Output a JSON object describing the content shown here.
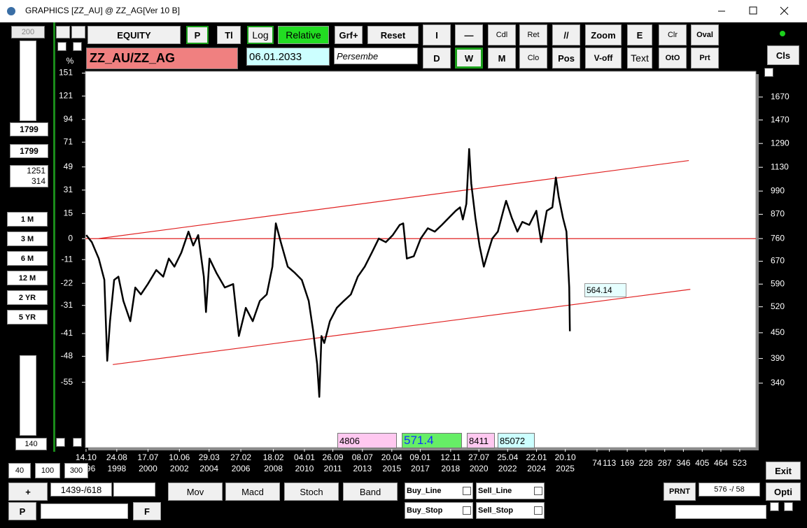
{
  "window": {
    "title": "GRAPHICS  [ZZ_AU] @ ZZ_AG[Ver 10 B]"
  },
  "toolbar": {
    "buttons": [
      "EQUITY",
      "P",
      "Tl",
      "Log",
      "Relative",
      "Grf+",
      "Reset",
      "I",
      "—",
      "Cdl",
      "Ret",
      "//",
      "Zoom",
      "E",
      "Clr",
      "Oval",
      "D",
      "W",
      "M",
      "Clo",
      "Pos",
      "V-off",
      "Text",
      "OtO",
      "Prt",
      "Cls"
    ],
    "symbol": "ZZ_AU/ZZ_AG",
    "date": "06.01.2033",
    "day": "Persembe"
  },
  "left_panel": {
    "fields": [
      "200",
      "1799",
      "1799",
      "1251\n314"
    ],
    "periods": [
      "1 M",
      "3 M",
      "6 M",
      "12 M",
      "2 YR",
      "5 YR"
    ],
    "count": "140"
  },
  "bottom_panel": {
    "zoom_buttons": [
      "40",
      "100",
      "300"
    ],
    "plus": "+",
    "position": "1439-/618",
    "p": "P",
    "f": "F",
    "indicators": [
      "Mov",
      "Macd",
      "Stoch",
      "Band"
    ],
    "signals": [
      "Buy_Line",
      "Sell_Line",
      "Buy_Stop",
      "Sell_Stop"
    ],
    "print": "PRNT",
    "cursor": "576 -/ 58",
    "exit": "Exit",
    "options": "Opti"
  },
  "info_boxes": [
    "4806",
    "571.4",
    "8411",
    "85072"
  ],
  "chart_data": {
    "type": "line",
    "y_label": "%",
    "log_scale": true,
    "annotation": "564.14",
    "xlim": [
      1996.75,
      2037.34
    ],
    "xticks": [
      {
        "value": 1996.79,
        "label": "14.10\n1996"
      },
      {
        "value": 1998.65,
        "label": "24.08\n1998"
      },
      {
        "value": 2000.54,
        "label": "17.07\n2000"
      },
      {
        "value": 2002.44,
        "label": "10.06\n2002"
      },
      {
        "value": 2004.24,
        "label": "29.03\n2004"
      },
      {
        "value": 2006.16,
        "label": "27.02\n2006"
      },
      {
        "value": 2008.13,
        "label": "18.02\n2008"
      },
      {
        "value": 2010.01,
        "label": "04.01\n2010"
      },
      {
        "value": 2011.73,
        "label": "26.09\n2011"
      },
      {
        "value": 2013.52,
        "label": "08.07\n2013"
      },
      {
        "value": 2015.3,
        "label": "20.04\n2015"
      },
      {
        "value": 2017.02,
        "label": "09.01\n2017"
      },
      {
        "value": 2018.86,
        "label": "12.11\n2018"
      },
      {
        "value": 2020.57,
        "label": "27.07\n2020"
      },
      {
        "value": 2022.31,
        "label": "25.04\n2022"
      },
      {
        "value": 2024.06,
        "label": "22.01\n2024"
      },
      {
        "value": 2025.8,
        "label": "20.10\n2025"
      },
      {
        "value": 2027.72,
        "label": "74"
      },
      {
        "value": 2028.47,
        "label": "113"
      },
      {
        "value": 2029.55,
        "label": "169"
      },
      {
        "value": 2030.68,
        "label": "228"
      },
      {
        "value": 2031.82,
        "label": "287"
      },
      {
        "value": 2032.95,
        "label": "346"
      },
      {
        "value": 2034.09,
        "label": "405"
      },
      {
        "value": 2035.22,
        "label": "464"
      },
      {
        "value": 2036.36,
        "label": "523"
      }
    ],
    "ylim": [
      -68.7,
      153.5
    ],
    "yticks": [
      151,
      121,
      94,
      71,
      49,
      31,
      15,
      0,
      -11,
      -22,
      -31,
      -41,
      -48,
      -55
    ],
    "y2lim": [
      237.6,
      1927
    ],
    "y2ticks": [
      1670,
      1470,
      1290,
      1130,
      990,
      870,
      760,
      670,
      590,
      520,
      450,
      390,
      340
    ],
    "series": [
      {
        "color": "#000000",
        "axis": "y2",
        "x": [
          1996.8,
          1997.14,
          1997.56,
          1997.9,
          1998.07,
          1998.24,
          1998.49,
          1998.75,
          1999.05,
          1999.47,
          1999.77,
          2000.11,
          2000.53,
          2001.04,
          2001.46,
          2001.8,
          2002.14,
          2002.56,
          2002.99,
          2003.28,
          2003.58,
          2003.92,
          2004.05,
          2004.26,
          2004.68,
          2005.19,
          2005.7,
          2006.04,
          2006.46,
          2006.88,
          2007.31,
          2007.73,
          2008.07,
          2008.28,
          2008.58,
          2009.0,
          2009.43,
          2009.85,
          2010.27,
          2010.53,
          2010.78,
          2010.91,
          2011.04,
          2011.21,
          2011.55,
          2011.97,
          2012.39,
          2012.82,
          2013.24,
          2013.66,
          2014.09,
          2014.51,
          2014.94,
          2015.36,
          2015.78,
          2015.99,
          2016.21,
          2016.63,
          2017.05,
          2017.48,
          2017.9,
          2018.33,
          2018.75,
          2019.17,
          2019.43,
          2019.6,
          2019.81,
          2019.98,
          2020.11,
          2020.36,
          2020.61,
          2020.87,
          2021.12,
          2021.38,
          2021.72,
          2022.05,
          2022.22,
          2022.56,
          2022.9,
          2023.2,
          2023.62,
          2024.05,
          2024.34,
          2024.68,
          2025.02,
          2025.23,
          2025.4,
          2025.66,
          2025.87,
          2026.04,
          2026.08
        ],
        "values": [
          775,
          745,
          680,
          604,
          385,
          480,
          604,
          615,
          537,
          480,
          579,
          557,
          590,
          638,
          615,
          680,
          650,
          703,
          790,
          731,
          775,
          615,
          505,
          680,
          628,
          579,
          590,
          442,
          517,
          480,
          537,
          557,
          650,
          827,
          745,
          650,
          628,
          604,
          537,
          458,
          378,
          315,
          442,
          425,
          480,
          517,
          537,
          557,
          615,
          650,
          703,
          760,
          745,
          775,
          820,
          827,
          680,
          689,
          760,
          805,
          790,
          820,
          853,
          887,
          904,
          845,
          922,
          1251,
          1032,
          853,
          731,
          650,
          703,
          760,
          790,
          887,
          938,
          853,
          790,
          834,
          820,
          887,
          745,
          887,
          904,
          1068,
          960,
          853,
          790,
          579,
          454
        ]
      }
    ],
    "trendlines": [
      {
        "color": "#e02020",
        "x": [
          1997.56,
          2033.28
        ],
        "values": [
          760,
          1173
        ]
      },
      {
        "color": "#e02020",
        "x": [
          1998.41,
          2033.37
        ],
        "values": [
          377,
          573
        ]
      }
    ],
    "reference_line": {
      "value": 0,
      "color": "#e02020"
    }
  }
}
